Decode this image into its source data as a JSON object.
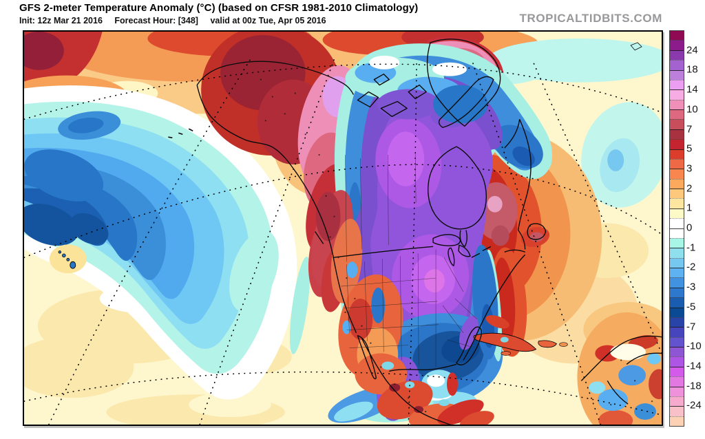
{
  "header": {
    "title": "GFS 2-meter Temperature Anomaly (°C) (based on CFSR 1981-2010 Climatology)",
    "init": "Init: 12z Mar 21 2016",
    "forecast_hour": "Forecast Hour: [348]",
    "valid": "valid at 00z Tue, Apr 05 2016",
    "watermark": "TROPICALTIDBITS.COM"
  },
  "colorbar": {
    "units": "°C anomaly",
    "tick_labels": [
      "24",
      "18",
      "14",
      "10",
      "7",
      "5",
      "3",
      "2",
      "1",
      "0",
      "-1",
      "-2",
      "-3",
      "-5",
      "-7",
      "-10",
      "-14",
      "-18",
      "-24"
    ],
    "segments_per_tick": 2,
    "segment_colors": [
      "#8F0A52",
      "#8C1C8C",
      "#8A3AAC",
      "#A462D0",
      "#BC80DC",
      "#EC9FF2",
      "#F8ACE4",
      "#F08FB8",
      "#DE6880",
      "#C84E5C",
      "#A93240",
      "#C42430",
      "#DC3C2C",
      "#EE6946",
      "#F8864E",
      "#FCA95E",
      "#FDC87C",
      "#FEE5A0",
      "#FEFAC8",
      "#FFFFFF",
      "#FFFFFF",
      "#A8F6E6",
      "#8FDFEE",
      "#76C8F0",
      "#5FB2F2",
      "#4292E2",
      "#2E78CE",
      "#1A5CB0",
      "#0A4A94",
      "#2844A8",
      "#4745BE",
      "#6353CE",
      "#8E55D5",
      "#AE55E5",
      "#D45AEC",
      "#E378E3",
      "#F091DC",
      "#F5AACE",
      "#FAC0CA",
      "#FDD2B4"
    ]
  }
}
